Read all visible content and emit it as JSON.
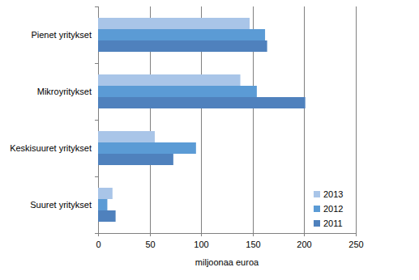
{
  "chart_data": {
    "type": "bar",
    "orientation": "horizontal",
    "categories": [
      "Pienet yritykset",
      "Mikroyritykset",
      "Keskisuuret yritykset",
      "Suuret yritykset"
    ],
    "series": [
      {
        "name": "2013",
        "color": "#a9c5e8",
        "values": [
          147,
          138,
          55,
          14
        ]
      },
      {
        "name": "2012",
        "color": "#5b9bd5",
        "values": [
          162,
          154,
          95,
          9
        ]
      },
      {
        "name": "2011",
        "color": "#4f81bd",
        "values": [
          164,
          201,
          73,
          17
        ]
      }
    ],
    "x_label": "miljoonaa euroa",
    "xlim": [
      0,
      250
    ],
    "xticks": [
      0,
      50,
      100,
      150,
      200,
      250
    ],
    "grid": true,
    "legend": "lower right"
  }
}
